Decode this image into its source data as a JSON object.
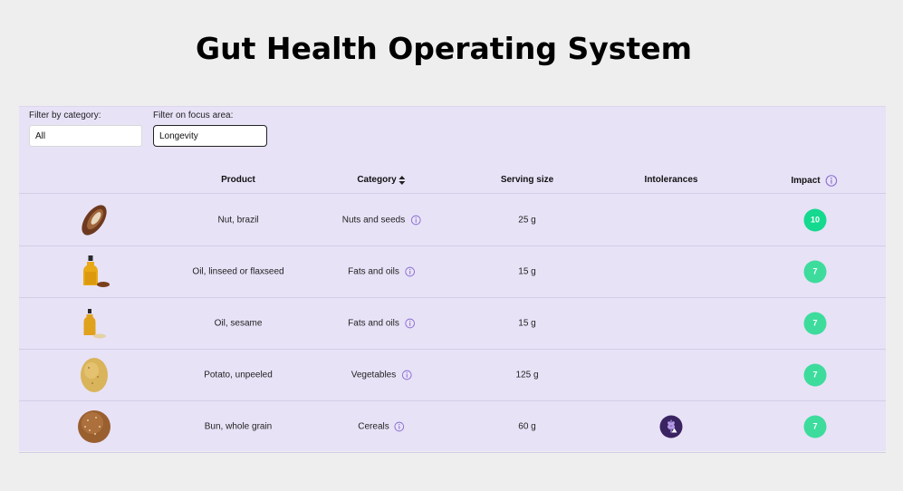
{
  "page_title": "Gut Health Operating System",
  "filters": {
    "category_label": "Filter by category:",
    "category_value": "All",
    "focus_label": "Filter on focus area:",
    "focus_value": "Longevity"
  },
  "columns": {
    "product": "Product",
    "category": "Category",
    "serving_size": "Serving size",
    "intolerances": "Intolerances",
    "impact": "Impact"
  },
  "rows": [
    {
      "image": "brazil-nut-image",
      "product": "Nut, brazil",
      "category": "Nuts and seeds",
      "serving": "25 g",
      "intolerance": "",
      "impact": "10"
    },
    {
      "image": "linseed-oil-image",
      "product": "Oil, linseed or flaxseed",
      "category": "Fats and oils",
      "serving": "15 g",
      "intolerance": "",
      "impact": "7"
    },
    {
      "image": "sesame-oil-image",
      "product": "Oil, sesame",
      "category": "Fats and oils",
      "serving": "15 g",
      "intolerance": "",
      "impact": "7"
    },
    {
      "image": "potato-image",
      "product": "Potato, unpeeled",
      "category": "Vegetables",
      "serving": "125 g",
      "intolerance": "",
      "impact": "7"
    },
    {
      "image": "whole-grain-bun-image",
      "product": "Bun, whole grain",
      "category": "Cereals",
      "serving": "60 g",
      "intolerance": "gluten-warning-icon",
      "impact": "7"
    }
  ],
  "colors": {
    "panel_bg": "#e8e2f7",
    "impact_high": "#14d98f",
    "impact_mid": "#3ddc9c",
    "info_icon": "#8a6fd1",
    "intolerance_bg": "#3a2361"
  }
}
